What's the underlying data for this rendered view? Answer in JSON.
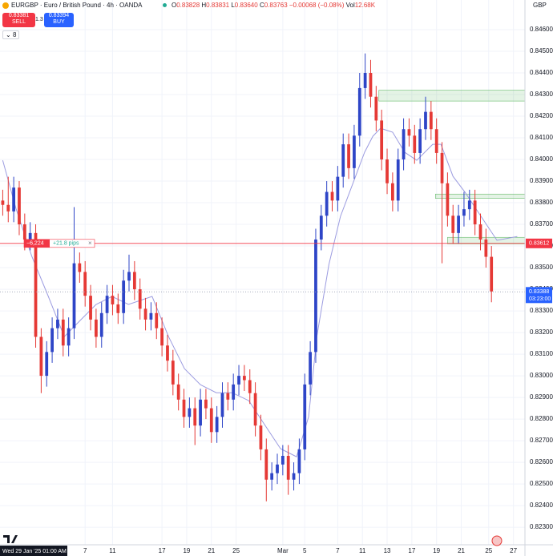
{
  "header": {
    "symbol": "EURGBP · Euro / British Pound · 4h · OANDA",
    "o_label": "O",
    "o": "0.83828",
    "h_label": "H",
    "h": "0.83831",
    "l_label": "L",
    "l": "0.83640",
    "c_label": "C",
    "c": "0.83763",
    "change": "−0.00068 (−0.08%)",
    "vol_label": "Vol",
    "vol": "12.68K",
    "sell_price": "0.83381",
    "sell": "SELL",
    "spread": "1.3",
    "buy_price": "0.83394",
    "buy": "BUY",
    "indicators": "8",
    "currency": "GBP",
    "cursor_time": "Wed 29 Jan '25  01:00 AM",
    "position_pnl": "−6,224",
    "position_pips": "+21.8 pips",
    "position_close": "×",
    "countdown": "03:23:00"
  },
  "chart_data": {
    "type": "candlestick",
    "up_color": "#2e45c7",
    "down_color": "#e53935",
    "grid": true,
    "xlim": [
      -0.5,
      95.1
    ],
    "ylim": [
      0.82219,
      0.84737
    ],
    "xticks": [
      {
        "value": 15,
        "label": "7"
      },
      {
        "value": 20,
        "label": "11"
      },
      {
        "value": 29,
        "label": "17"
      },
      {
        "value": 33.5,
        "label": "19"
      },
      {
        "value": 38,
        "label": "21"
      },
      {
        "value": 42.5,
        "label": "25"
      },
      {
        "value": 51,
        "label": "Mar"
      },
      {
        "value": 55,
        "label": "5"
      },
      {
        "value": 61,
        "label": "7"
      },
      {
        "value": 65.5,
        "label": "11"
      },
      {
        "value": 70,
        "label": "13"
      },
      {
        "value": 74.5,
        "label": "17"
      },
      {
        "value": 79,
        "label": "19"
      },
      {
        "value": 83.5,
        "label": "21"
      },
      {
        "value": 88.5,
        "label": "25"
      },
      {
        "value": 93,
        "label": "27"
      }
    ],
    "yticks": [
      {
        "value": 0.823,
        "label": "0.82300"
      },
      {
        "value": 0.824,
        "label": "0.82400"
      },
      {
        "value": 0.825,
        "label": "0.82500"
      },
      {
        "value": 0.826,
        "label": "0.82600"
      },
      {
        "value": 0.827,
        "label": "0.82700"
      },
      {
        "value": 0.828,
        "label": "0.82800"
      },
      {
        "value": 0.829,
        "label": "0.82900"
      },
      {
        "value": 0.83,
        "label": "0.83000"
      },
      {
        "value": 0.831,
        "label": "0.83100"
      },
      {
        "value": 0.832,
        "label": "0.83200"
      },
      {
        "value": 0.833,
        "label": "0.83300"
      },
      {
        "value": 0.834,
        "label": "0.83400"
      },
      {
        "value": 0.835,
        "label": "0.83500"
      },
      {
        "value": 0.836,
        "label": "0.83600"
      },
      {
        "value": 0.837,
        "label": "0.83700"
      },
      {
        "value": 0.838,
        "label": "0.83800"
      },
      {
        "value": 0.839,
        "label": "0.83900"
      },
      {
        "value": 0.84,
        "label": "0.84000"
      },
      {
        "value": 0.841,
        "label": "0.84100"
      },
      {
        "value": 0.842,
        "label": "0.84200"
      },
      {
        "value": 0.843,
        "label": "0.84300"
      },
      {
        "value": 0.844,
        "label": "0.84400"
      },
      {
        "value": 0.845,
        "label": "0.84500"
      },
      {
        "value": 0.846,
        "label": "0.84600"
      }
    ],
    "open": [
      0.8381,
      0.8379,
      0.8376,
      0.8387,
      0.837,
      0.8363,
      0.8366,
      0.8318,
      0.83,
      0.8311,
      0.8322,
      0.8326,
      0.8314,
      0.8322,
      0.8352,
      0.8348,
      0.8337,
      0.8326,
      0.8318,
      0.8329,
      0.8337,
      0.8333,
      0.8329,
      0.8344,
      0.8348,
      0.834,
      0.8331,
      0.8326,
      0.8329,
      0.8322,
      0.8314,
      0.8307,
      0.8296,
      0.8289,
      0.8281,
      0.8285,
      0.8277,
      0.8289,
      0.8285,
      0.8274,
      0.8281,
      0.8292,
      0.8289,
      0.8296,
      0.83,
      0.8298,
      0.8292,
      0.8277,
      0.8266,
      0.8252,
      0.8255,
      0.8259,
      0.8263,
      0.8252,
      0.8255,
      0.8266,
      0.8296,
      0.8311,
      0.8363,
      0.8374,
      0.8385,
      0.8381,
      0.8392,
      0.8407,
      0.8396,
      0.8411,
      0.8433,
      0.844,
      0.8429,
      0.8418,
      0.84,
      0.8389,
      0.8381,
      0.84,
      0.8414,
      0.8411,
      0.8403,
      0.8414,
      0.8422,
      0.8414,
      0.8403,
      0.8389,
      0.8374,
      0.8366,
      0.8374,
      0.8377,
      0.8381,
      0.837,
      0.8363,
      0.8355
    ],
    "high": [
      0.8386,
      0.8392,
      0.8392,
      0.839,
      0.8375,
      0.8371,
      0.837,
      0.8322,
      0.8316,
      0.8327,
      0.8331,
      0.8331,
      0.8327,
      0.8378,
      0.8357,
      0.8353,
      0.8342,
      0.8331,
      0.8334,
      0.8342,
      0.8342,
      0.8338,
      0.8349,
      0.8356,
      0.8353,
      0.8345,
      0.8336,
      0.8334,
      0.8334,
      0.8327,
      0.8319,
      0.8312,
      0.8301,
      0.8294,
      0.829,
      0.829,
      0.8294,
      0.8294,
      0.829,
      0.8286,
      0.8297,
      0.8297,
      0.8301,
      0.8305,
      0.8305,
      0.8303,
      0.8297,
      0.8282,
      0.8271,
      0.826,
      0.8264,
      0.8268,
      0.8268,
      0.826,
      0.8271,
      0.8301,
      0.8316,
      0.8368,
      0.8379,
      0.839,
      0.839,
      0.8397,
      0.8412,
      0.8412,
      0.8416,
      0.844,
      0.8449,
      0.8446,
      0.8434,
      0.8423,
      0.8405,
      0.8394,
      0.8405,
      0.8419,
      0.8419,
      0.8416,
      0.8419,
      0.8429,
      0.8427,
      0.8419,
      0.8408,
      0.8394,
      0.8379,
      0.8379,
      0.8385,
      0.8386,
      0.8386,
      0.8375,
      0.8368,
      0.836
    ],
    "low": [
      0.8374,
      0.8371,
      0.8371,
      0.8365,
      0.8358,
      0.8358,
      0.8313,
      0.8292,
      0.8295,
      0.8306,
      0.8317,
      0.8309,
      0.8309,
      0.8317,
      0.8343,
      0.8332,
      0.8321,
      0.8313,
      0.8313,
      0.8324,
      0.8328,
      0.8324,
      0.8324,
      0.8339,
      0.8335,
      0.8326,
      0.8321,
      0.8321,
      0.8317,
      0.8309,
      0.8302,
      0.8291,
      0.8284,
      0.8276,
      0.8276,
      0.8268,
      0.8272,
      0.828,
      0.8269,
      0.8269,
      0.8276,
      0.8284,
      0.8284,
      0.8291,
      0.8293,
      0.8287,
      0.8272,
      0.8261,
      0.8242,
      0.8247,
      0.825,
      0.8254,
      0.8245,
      0.8247,
      0.825,
      0.8261,
      0.8291,
      0.8306,
      0.8358,
      0.8369,
      0.8376,
      0.8376,
      0.8387,
      0.8391,
      0.8391,
      0.8406,
      0.8428,
      0.8424,
      0.8413,
      0.8395,
      0.8384,
      0.8376,
      0.8376,
      0.8395,
      0.8406,
      0.8398,
      0.8398,
      0.8409,
      0.8409,
      0.8398,
      0.8352,
      0.8369,
      0.8361,
      0.8361,
      0.8369,
      0.8372,
      0.8365,
      0.8358,
      0.835,
      0.8334
    ],
    "close": [
      0.8379,
      0.8376,
      0.8387,
      0.837,
      0.8363,
      0.8366,
      0.8318,
      0.83,
      0.8311,
      0.8322,
      0.8326,
      0.8314,
      0.8322,
      0.8352,
      0.8348,
      0.8337,
      0.8326,
      0.8318,
      0.8329,
      0.8337,
      0.8333,
      0.8329,
      0.8344,
      0.8348,
      0.834,
      0.8331,
      0.8326,
      0.8329,
      0.8322,
      0.8314,
      0.8307,
      0.8296,
      0.8289,
      0.8281,
      0.8285,
      0.8277,
      0.8289,
      0.8285,
      0.8274,
      0.8281,
      0.8292,
      0.8289,
      0.8296,
      0.83,
      0.8298,
      0.8292,
      0.8277,
      0.8266,
      0.8252,
      0.8255,
      0.8259,
      0.8263,
      0.8252,
      0.8255,
      0.8266,
      0.8296,
      0.8311,
      0.8363,
      0.8374,
      0.8385,
      0.8381,
      0.8392,
      0.8407,
      0.8396,
      0.8411,
      0.8433,
      0.844,
      0.8429,
      0.8418,
      0.84,
      0.8389,
      0.8381,
      0.84,
      0.8414,
      0.8411,
      0.8403,
      0.8414,
      0.8422,
      0.8414,
      0.8403,
      0.8389,
      0.8374,
      0.8366,
      0.8374,
      0.8377,
      0.8381,
      0.837,
      0.8363,
      0.8355,
      0.8339
    ],
    "ma": {
      "color": "#9c9ce0",
      "x": [
        0,
        2.4,
        5.3,
        8.3,
        11.2,
        14.1,
        17,
        19.9,
        22.9,
        27.2,
        30.2,
        33.1,
        36,
        38.9,
        41.8,
        44.8,
        47.7,
        50.6,
        53.5,
        55.7,
        57.2,
        59.4,
        61.5,
        63.7,
        65.9,
        67.4,
        68.8,
        71,
        73.2,
        75.4,
        78.3,
        79.8,
        82,
        84.2,
        87.1,
        90,
        93.7
      ],
      "values": [
        0.83996,
        0.83774,
        0.83552,
        0.83367,
        0.83181,
        0.83256,
        0.8333,
        0.83367,
        0.8333,
        0.83367,
        0.83181,
        0.83033,
        0.82959,
        0.82922,
        0.82922,
        0.82885,
        0.82774,
        0.82663,
        0.82626,
        0.82811,
        0.83181,
        0.83515,
        0.83737,
        0.83885,
        0.84033,
        0.84107,
        0.84144,
        0.84126,
        0.84033,
        0.83996,
        0.8407,
        0.8407,
        0.83922,
        0.83848,
        0.83737,
        0.83626,
        0.83644
      ]
    },
    "zones": [
      {
        "start": 68.5,
        "top": 0.8432,
        "bottom": 0.8427
      },
      {
        "start": 78.8,
        "top": 0.8384,
        "bottom": 0.8382
      },
      {
        "start": 81.0,
        "top": 0.8364,
        "bottom": 0.8361
      }
    ],
    "position_price": 0.83612,
    "last_price": 0.83388
  }
}
